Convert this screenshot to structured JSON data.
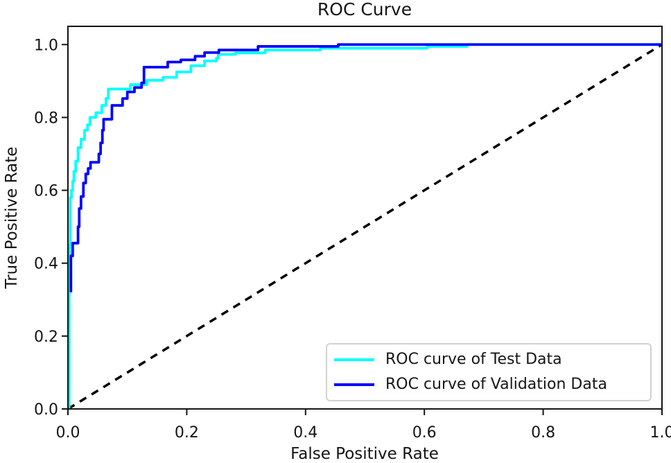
{
  "figure": {
    "title": "ROC Curve",
    "xlabel": "False Positive Rate",
    "ylabel": "True Positive Rate"
  },
  "chart_data": {
    "type": "line",
    "title": "ROC Curve",
    "xlabel": "False Positive Rate",
    "ylabel": "True Positive Rate",
    "xlim": [
      0,
      1
    ],
    "ylim": [
      0,
      1.05
    ],
    "grid": false,
    "x_tick_labels": [
      "0.0",
      "0.2",
      "0.4",
      "0.6",
      "0.8",
      "1.0"
    ],
    "y_tick_labels": [
      "0.0",
      "0.2",
      "0.4",
      "0.6",
      "0.8",
      "1.0"
    ],
    "legend": {
      "position": "lower right",
      "entries": [
        "ROC curve of Test Data",
        "ROC curve of Validation Data"
      ]
    },
    "axis_color": "#141414",
    "series": [
      {
        "name": "ROC curve of Test Data",
        "color": "#00ffff",
        "style": "solid",
        "points": [
          [
            0.002,
            0.0
          ],
          [
            0.002,
            0.33
          ],
          [
            0.003,
            0.33
          ],
          [
            0.003,
            0.45
          ],
          [
            0.004,
            0.45
          ],
          [
            0.004,
            0.58
          ],
          [
            0.006,
            0.58
          ],
          [
            0.006,
            0.6
          ],
          [
            0.008,
            0.6
          ],
          [
            0.008,
            0.625
          ],
          [
            0.01,
            0.625
          ],
          [
            0.01,
            0.652
          ],
          [
            0.013,
            0.652
          ],
          [
            0.013,
            0.68
          ],
          [
            0.017,
            0.68
          ],
          [
            0.017,
            0.717
          ],
          [
            0.022,
            0.717
          ],
          [
            0.022,
            0.74
          ],
          [
            0.028,
            0.74
          ],
          [
            0.028,
            0.765
          ],
          [
            0.033,
            0.765
          ],
          [
            0.033,
            0.78
          ],
          [
            0.037,
            0.78
          ],
          [
            0.037,
            0.8
          ],
          [
            0.047,
            0.8
          ],
          [
            0.047,
            0.813
          ],
          [
            0.057,
            0.813
          ],
          [
            0.057,
            0.833
          ],
          [
            0.064,
            0.833
          ],
          [
            0.064,
            0.852
          ],
          [
            0.068,
            0.852
          ],
          [
            0.068,
            0.878
          ],
          [
            0.105,
            0.878
          ],
          [
            0.105,
            0.89
          ],
          [
            0.133,
            0.89
          ],
          [
            0.133,
            0.902
          ],
          [
            0.16,
            0.902
          ],
          [
            0.16,
            0.91
          ],
          [
            0.183,
            0.91
          ],
          [
            0.183,
            0.925
          ],
          [
            0.207,
            0.925
          ],
          [
            0.207,
            0.942
          ],
          [
            0.23,
            0.942
          ],
          [
            0.23,
            0.955
          ],
          [
            0.25,
            0.955
          ],
          [
            0.25,
            0.963
          ],
          [
            0.253,
            0.963
          ],
          [
            0.253,
            0.973
          ],
          [
            0.282,
            0.973
          ],
          [
            0.282,
            0.977
          ],
          [
            0.332,
            0.977
          ],
          [
            0.332,
            0.985
          ],
          [
            0.425,
            0.985
          ],
          [
            0.425,
            0.99
          ],
          [
            0.605,
            0.99
          ],
          [
            0.605,
            0.995
          ],
          [
            0.672,
            0.995
          ],
          [
            0.672,
            1.0
          ],
          [
            1.0,
            1.0
          ]
        ]
      },
      {
        "name": "ROC curve of Validation Data",
        "color": "#0404ff",
        "style": "solid",
        "points": [
          [
            0.005,
            0.32
          ],
          [
            0.005,
            0.42
          ],
          [
            0.008,
            0.42
          ],
          [
            0.008,
            0.455
          ],
          [
            0.017,
            0.455
          ],
          [
            0.017,
            0.5
          ],
          [
            0.019,
            0.5
          ],
          [
            0.019,
            0.55
          ],
          [
            0.022,
            0.55
          ],
          [
            0.022,
            0.583
          ],
          [
            0.026,
            0.583
          ],
          [
            0.026,
            0.62
          ],
          [
            0.03,
            0.62
          ],
          [
            0.03,
            0.645
          ],
          [
            0.034,
            0.645
          ],
          [
            0.034,
            0.66
          ],
          [
            0.038,
            0.66
          ],
          [
            0.038,
            0.677
          ],
          [
            0.052,
            0.677
          ],
          [
            0.052,
            0.7
          ],
          [
            0.055,
            0.7
          ],
          [
            0.055,
            0.73
          ],
          [
            0.058,
            0.73
          ],
          [
            0.058,
            0.765
          ],
          [
            0.06,
            0.765
          ],
          [
            0.06,
            0.795
          ],
          [
            0.074,
            0.795
          ],
          [
            0.074,
            0.833
          ],
          [
            0.092,
            0.833
          ],
          [
            0.092,
            0.852
          ],
          [
            0.1,
            0.852
          ],
          [
            0.1,
            0.87
          ],
          [
            0.112,
            0.87
          ],
          [
            0.112,
            0.882
          ],
          [
            0.124,
            0.882
          ],
          [
            0.124,
            0.895
          ],
          [
            0.128,
            0.895
          ],
          [
            0.128,
            0.938
          ],
          [
            0.168,
            0.938
          ],
          [
            0.168,
            0.952
          ],
          [
            0.19,
            0.952
          ],
          [
            0.19,
            0.958
          ],
          [
            0.214,
            0.958
          ],
          [
            0.214,
            0.968
          ],
          [
            0.23,
            0.968
          ],
          [
            0.23,
            0.978
          ],
          [
            0.254,
            0.978
          ],
          [
            0.254,
            0.985
          ],
          [
            0.32,
            0.985
          ],
          [
            0.32,
            0.995
          ],
          [
            0.455,
            0.995
          ],
          [
            0.455,
            1.0
          ],
          [
            1.0,
            1.0
          ]
        ]
      }
    ],
    "reference_line": {
      "name": "chance-diagonal",
      "color": "#000000",
      "style": "dashed",
      "points": [
        [
          0,
          0
        ],
        [
          1,
          1
        ]
      ]
    }
  }
}
